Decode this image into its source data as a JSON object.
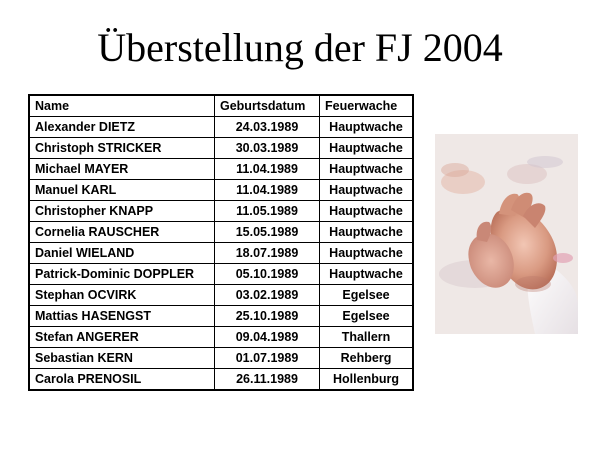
{
  "title": "Überstellung der FJ 2004",
  "table": {
    "headers": {
      "name": "Name",
      "birthdate": "Geburtsdatum",
      "station": "Feuerwache"
    },
    "rows": [
      {
        "name": "Alexander DIETZ",
        "birthdate": "24.03.1989",
        "station": "Hauptwache"
      },
      {
        "name": "Christoph STRICKER",
        "birthdate": "30.03.1989",
        "station": "Hauptwache"
      },
      {
        "name": "Michael MAYER",
        "birthdate": "11.04.1989",
        "station": "Hauptwache"
      },
      {
        "name": "Manuel KARL",
        "birthdate": "11.04.1989",
        "station": "Hauptwache"
      },
      {
        "name": "Christopher KNAPP",
        "birthdate": "11.05.1989",
        "station": "Hauptwache"
      },
      {
        "name": "Cornelia RAUSCHER",
        "birthdate": "15.05.1989",
        "station": "Hauptwache"
      },
      {
        "name": "Daniel WIELAND",
        "birthdate": "18.07.1989",
        "station": "Hauptwache"
      },
      {
        "name": "Patrick-Dominic DOPPLER",
        "birthdate": "05.10.1989",
        "station": "Hauptwache"
      },
      {
        "name": "Stephan OCVIRK",
        "birthdate": "03.02.1989",
        "station": "Egelsee"
      },
      {
        "name": "Mattias HASENGST",
        "birthdate": "25.10.1989",
        "station": "Egelsee"
      },
      {
        "name": "Stefan ANGERER",
        "birthdate": "09.04.1989",
        "station": "Thallern"
      },
      {
        "name": "Sebastian KERN",
        "birthdate": "01.07.1989",
        "station": "Rehberg"
      },
      {
        "name": "Carola PRENOSIL",
        "birthdate": "26.11.1989",
        "station": "Hollenburg"
      }
    ]
  },
  "photo": {
    "icon": "clapping-hands-photo"
  }
}
